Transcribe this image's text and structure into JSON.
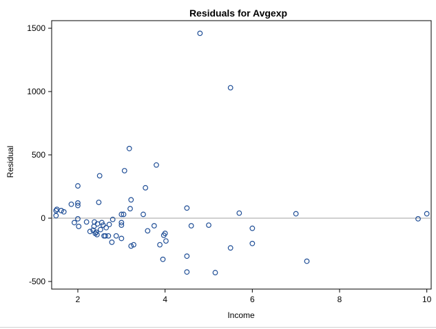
{
  "chart_data": {
    "type": "scatter",
    "title": "Residuals for Avgexp",
    "xlabel": "Income",
    "ylabel": "Residual",
    "xlim": [
      1.4,
      10.1
    ],
    "ylim": [
      -560,
      1560
    ],
    "xticks": [
      2,
      4,
      6,
      8,
      10
    ],
    "yticks": [
      -500,
      0,
      500,
      1000,
      1500
    ],
    "reference_line_y": 0,
    "grid": false,
    "legend": "none",
    "marker": "circle",
    "colors": {
      "marker": "#1f4e96",
      "axis": "#000000",
      "refline": "#a0a0a0"
    },
    "points": [
      [
        1.5,
        60
      ],
      [
        1.52,
        70
      ],
      [
        1.5,
        20
      ],
      [
        1.62,
        60
      ],
      [
        1.68,
        50
      ],
      [
        1.85,
        110
      ],
      [
        1.92,
        -35
      ],
      [
        2.0,
        255
      ],
      [
        2.0,
        120
      ],
      [
        2.0,
        100
      ],
      [
        2.0,
        -5
      ],
      [
        2.02,
        -65
      ],
      [
        2.2,
        -30
      ],
      [
        2.28,
        -105
      ],
      [
        2.35,
        -95
      ],
      [
        2.37,
        -65
      ],
      [
        2.4,
        -120
      ],
      [
        2.38,
        -30
      ],
      [
        2.42,
        -110
      ],
      [
        2.44,
        -130
      ],
      [
        2.45,
        -45
      ],
      [
        2.48,
        125
      ],
      [
        2.5,
        335
      ],
      [
        2.52,
        -90
      ],
      [
        2.55,
        -35
      ],
      [
        2.58,
        -55
      ],
      [
        2.6,
        -140
      ],
      [
        2.63,
        -140
      ],
      [
        2.65,
        -75
      ],
      [
        2.7,
        -140
      ],
      [
        2.72,
        -50
      ],
      [
        2.78,
        -190
      ],
      [
        2.8,
        -10
      ],
      [
        2.88,
        -140
      ],
      [
        3.0,
        30
      ],
      [
        3.0,
        -35
      ],
      [
        3.0,
        -55
      ],
      [
        3.0,
        -160
      ],
      [
        3.05,
        30
      ],
      [
        3.07,
        375
      ],
      [
        3.18,
        550
      ],
      [
        3.2,
        75
      ],
      [
        3.22,
        145
      ],
      [
        3.22,
        -220
      ],
      [
        3.28,
        -210
      ],
      [
        3.5,
        30
      ],
      [
        3.55,
        240
      ],
      [
        3.6,
        -100
      ],
      [
        3.75,
        -60
      ],
      [
        3.8,
        420
      ],
      [
        3.88,
        -210
      ],
      [
        3.95,
        -325
      ],
      [
        3.97,
        -135
      ],
      [
        4.0,
        -120
      ],
      [
        4.02,
        -180
      ],
      [
        4.5,
        80
      ],
      [
        4.5,
        -300
      ],
      [
        4.5,
        -425
      ],
      [
        4.6,
        -60
      ],
      [
        4.8,
        1460
      ],
      [
        5.0,
        -55
      ],
      [
        5.15,
        -430
      ],
      [
        5.5,
        1030
      ],
      [
        5.5,
        -235
      ],
      [
        5.7,
        40
      ],
      [
        6.0,
        -80
      ],
      [
        6.0,
        -200
      ],
      [
        7.0,
        35
      ],
      [
        7.25,
        -340
      ],
      [
        9.8,
        -5
      ],
      [
        10.0,
        35
      ]
    ]
  }
}
